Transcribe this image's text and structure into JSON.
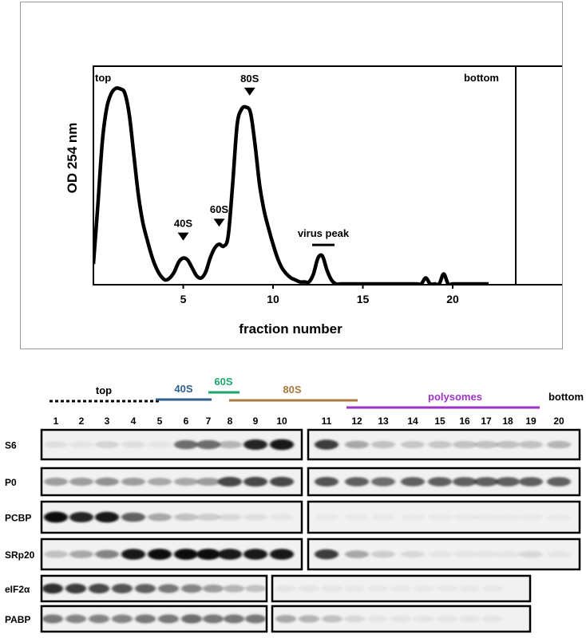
{
  "chart_data": {
    "type": "line",
    "title": "",
    "xlabel": "fraction number",
    "ylabel": "OD 254 nm",
    "xlim": [
      0,
      22
    ],
    "ylim": [
      0,
      1.0
    ],
    "x_ticks": [
      "5",
      "10",
      "15",
      "20"
    ],
    "x_tick_values": [
      5,
      10,
      15,
      20
    ],
    "grid": false,
    "series": [
      {
        "x": [
          0.0,
          0.25,
          0.5,
          0.75,
          1.0,
          1.25,
          1.5,
          1.75,
          2.0,
          2.25,
          2.5,
          2.75,
          3.0,
          3.25,
          3.5,
          3.75,
          4.0,
          4.25,
          4.5,
          4.75,
          5.0,
          5.25,
          5.5,
          5.75,
          6.0,
          6.25,
          6.5,
          6.75,
          7.0,
          7.25,
          7.5,
          7.75,
          8.0,
          8.25,
          8.5,
          8.75,
          9.0,
          9.25,
          9.5,
          9.75,
          10.0,
          10.25,
          10.5,
          10.75,
          11.0,
          11.25,
          11.5,
          11.75,
          12.0,
          12.25,
          12.5,
          12.75,
          13.0,
          13.25,
          13.5,
          13.75,
          14.0,
          14.5,
          15.0,
          15.5,
          16.0,
          16.5,
          17.0,
          17.5,
          18.0,
          18.25,
          18.5,
          18.75,
          19.0,
          19.25,
          19.5,
          19.75,
          20.0,
          20.25,
          20.5,
          21.0,
          21.5,
          22.0
        ],
        "y": [
          0.1,
          0.4,
          0.72,
          0.89,
          0.96,
          0.985,
          0.982,
          0.96,
          0.85,
          0.65,
          0.45,
          0.31,
          0.22,
          0.14,
          0.08,
          0.04,
          0.02,
          0.03,
          0.06,
          0.11,
          0.13,
          0.12,
          0.08,
          0.04,
          0.03,
          0.06,
          0.13,
          0.18,
          0.2,
          0.19,
          0.24,
          0.5,
          0.8,
          0.88,
          0.89,
          0.86,
          0.7,
          0.5,
          0.37,
          0.28,
          0.2,
          0.13,
          0.08,
          0.05,
          0.03,
          0.02,
          0.01,
          0.01,
          0.01,
          0.05,
          0.13,
          0.14,
          0.07,
          0.02,
          0.0,
          0.0,
          0.0,
          0.0,
          0.0,
          0.0,
          0.0,
          0.0,
          0.0,
          0.0,
          0.0,
          0.0,
          0.03,
          0.0,
          0.0,
          0.0,
          0.05,
          0.0,
          0.0,
          0.0,
          0.0,
          0.0,
          0.0,
          0.0
        ]
      }
    ],
    "annotations": {
      "top": "top",
      "bottom": "bottom",
      "peaks": [
        {
          "label": "40S",
          "x": 5.0,
          "marker": "triangle"
        },
        {
          "label": "60S",
          "x": 7.0,
          "marker": "triangle"
        },
        {
          "label": "80S",
          "x": 8.7,
          "marker": "triangle"
        },
        {
          "label": "virus peak",
          "x": 12.8,
          "marker": "bar"
        }
      ]
    }
  },
  "blot": {
    "groups": [
      {
        "label": "top",
        "color": "#000000",
        "style": "dotted"
      },
      {
        "label": "40S",
        "color": "#2f5d8e",
        "style": "solid"
      },
      {
        "label": "60S",
        "color": "#1aa86a",
        "style": "solid"
      },
      {
        "label": "80S",
        "color": "#a97a3e",
        "style": "solid"
      },
      {
        "label": "polysomes",
        "color": "#9c32c8",
        "style": "solid"
      }
    ],
    "bottom_label": "bottom",
    "fractions": [
      "1",
      "2",
      "3",
      "4",
      "5",
      "6",
      "7",
      "8",
      "9",
      "10",
      "11",
      "12",
      "13",
      "14",
      "15",
      "16",
      "17",
      "18",
      "19",
      "20"
    ],
    "rows": [
      {
        "label": "S6",
        "intensity": [
          0.08,
          0.06,
          0.12,
          0.08,
          0.05,
          0.55,
          0.55,
          0.25,
          0.85,
          0.9,
          0.75,
          0.3,
          0.2,
          0.18,
          0.18,
          0.2,
          0.2,
          0.2,
          0.2,
          0.25
        ]
      },
      {
        "label": "P0",
        "intensity": [
          0.35,
          0.35,
          0.4,
          0.35,
          0.3,
          0.3,
          0.35,
          0.7,
          0.7,
          0.7,
          0.65,
          0.6,
          0.55,
          0.6,
          0.6,
          0.6,
          0.6,
          0.6,
          0.6,
          0.6
        ]
      },
      {
        "label": "PCBP",
        "intensity": [
          0.95,
          0.85,
          0.9,
          0.6,
          0.3,
          0.2,
          0.15,
          0.1,
          0.08,
          0.05,
          0.02,
          0.02,
          0.02,
          0.02,
          0.02,
          0.02,
          0.02,
          0.02,
          0.02,
          0.02
        ]
      },
      {
        "label": "SRp20",
        "intensity": [
          0.2,
          0.3,
          0.45,
          0.9,
          0.95,
          0.95,
          0.95,
          0.9,
          0.9,
          0.9,
          0.75,
          0.3,
          0.15,
          0.1,
          0.05,
          0.05,
          0.05,
          0.05,
          0.1,
          0.05
        ]
      },
      {
        "label": "eIF2α",
        "intensity": [
          0.8,
          0.75,
          0.7,
          0.65,
          0.6,
          0.5,
          0.45,
          0.35,
          0.25,
          0.2,
          0.05,
          0.05,
          0.05,
          0.04,
          0.04,
          0.04,
          0.04,
          0.04,
          0.04,
          0.04
        ]
      },
      {
        "label": "PABP",
        "intensity": [
          0.5,
          0.45,
          0.45,
          0.45,
          0.5,
          0.5,
          0.55,
          0.5,
          0.5,
          0.5,
          0.3,
          0.25,
          0.2,
          0.1,
          0.05,
          0.05,
          0.05,
          0.05,
          0.05,
          0.05
        ]
      }
    ]
  }
}
